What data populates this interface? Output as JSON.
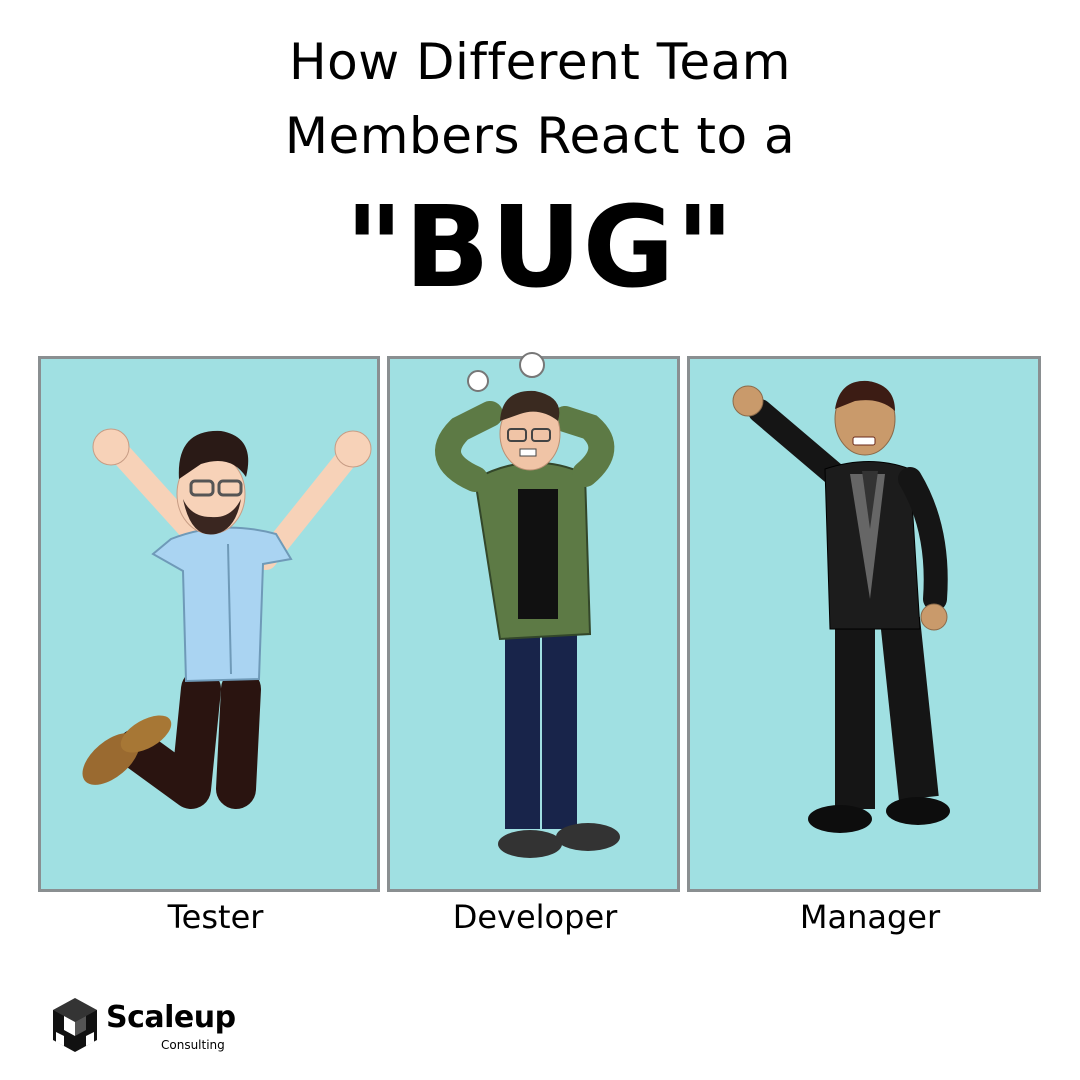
{
  "title": {
    "line1": "How Different Team",
    "line2": "Members React to a",
    "highlight": "\"BUG\""
  },
  "panels": [
    {
      "label": "Tester"
    },
    {
      "label": "Developer"
    },
    {
      "label": "Manager"
    }
  ],
  "brand": {
    "name": "Scaleup",
    "tagline": "Consulting"
  },
  "colors": {
    "panel_bg": "#a0e0e2",
    "panel_border": "#8a8f91",
    "text": "#000000"
  }
}
